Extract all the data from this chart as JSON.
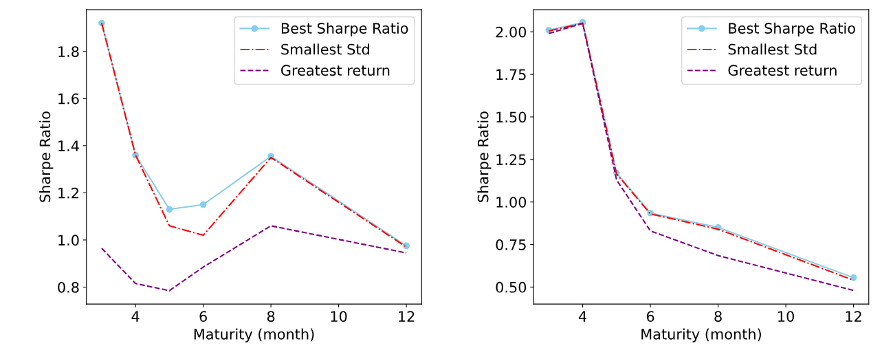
{
  "chart_data": [
    {
      "type": "line",
      "xlabel": "Maturity (month)",
      "ylabel": "Sharpe Ratio",
      "x": [
        3,
        4,
        5,
        6,
        8,
        12
      ],
      "xlim": [
        2.55,
        12.45
      ],
      "xticks": [
        4,
        6,
        8,
        10,
        12
      ],
      "ylim": [
        0.728,
        1.977
      ],
      "yticks": [
        0.8,
        {
          "value": 1.0,
          "label": "1.0"
        },
        1.2,
        1.4,
        1.6,
        1.8
      ],
      "legend": "top right",
      "grid": false,
      "series": [
        {
          "name": "Best Sharpe Ratio",
          "color": "#87ceeb",
          "marker": "circle",
          "line_style": "solid",
          "values": [
            1.92,
            1.36,
            1.13,
            1.15,
            1.355,
            0.975
          ]
        },
        {
          "name": "Smallest Std",
          "color": "#ff0000",
          "marker": "none",
          "line_style": "dashdot",
          "values": [
            1.92,
            1.36,
            1.06,
            1.02,
            1.35,
            0.97
          ]
        },
        {
          "name": "Greatest return",
          "color": "#800080",
          "marker": "none",
          "line_style": "dashed",
          "values": [
            0.965,
            0.815,
            0.785,
            0.885,
            1.06,
            0.945
          ]
        }
      ]
    },
    {
      "type": "line",
      "xlabel": "Maturity (month)",
      "ylabel": "Sharpe Ratio",
      "x": [
        3,
        4,
        5,
        6,
        8,
        12
      ],
      "xlim": [
        2.55,
        12.45
      ],
      "xticks": [
        4,
        6,
        8,
        10,
        12
      ],
      "ylim": [
        0.4,
        2.13
      ],
      "yticks": [
        {
          "value": 0.5,
          "label": "0.50"
        },
        0.75,
        {
          "value": 1.0,
          "label": "1.00"
        },
        1.25,
        {
          "value": 1.5,
          "label": "1.50"
        },
        1.75,
        {
          "value": 2.0,
          "label": "2.00"
        }
      ],
      "legend": "top right",
      "grid": false,
      "series": [
        {
          "name": "Best Sharpe Ratio",
          "color": "#87ceeb",
          "marker": "circle",
          "line_style": "solid",
          "values": [
            2.01,
            2.055,
            1.17,
            0.935,
            0.85,
            0.555
          ]
        },
        {
          "name": "Smallest Std",
          "color": "#ff0000",
          "marker": "none",
          "line_style": "dashdot",
          "values": [
            2.005,
            2.05,
            1.165,
            0.93,
            0.84,
            0.54
          ]
        },
        {
          "name": "Greatest return",
          "color": "#800080",
          "marker": "none",
          "line_style": "dashed",
          "values": [
            1.99,
            2.05,
            1.13,
            0.83,
            0.685,
            0.48
          ]
        }
      ]
    }
  ]
}
